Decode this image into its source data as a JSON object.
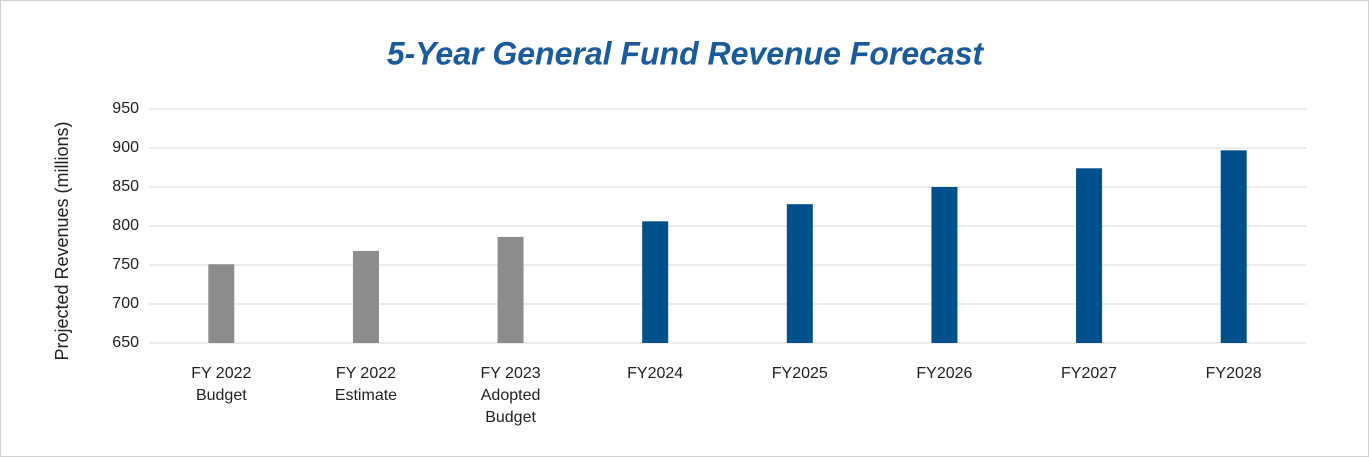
{
  "chart_data": {
    "type": "bar",
    "title": "5-Year General Fund Revenue Forecast",
    "y_label": "Projected Revenues (millions)",
    "categories": [
      "FY 2022 Budget",
      "FY 2022 Estimate",
      "FY 2023 Adopted Budget",
      "FY2024",
      "FY2025",
      "FY2026",
      "FY2027",
      "FY2028"
    ],
    "values": [
      751,
      768,
      786,
      806,
      828,
      850,
      874,
      897
    ],
    "colors": [
      "#8c8c8f",
      "#8c8c8f",
      "#8c8c8f",
      "#00508c",
      "#00508c",
      "#00508c",
      "#00508c",
      "#00508c"
    ],
    "ylim": [
      650,
      950
    ],
    "yticks": [
      650,
      700,
      750,
      800,
      850,
      900,
      950
    ],
    "grid": true
  }
}
